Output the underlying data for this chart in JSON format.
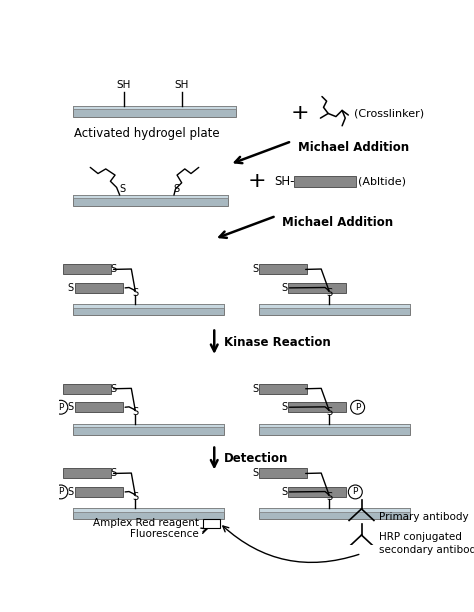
{
  "bg_color": "#ffffff",
  "plate_color": "#a8b8c0",
  "plate_top_color": "#c8d8e0",
  "plate_edge_color": "#777777",
  "peptide_color": "#888888",
  "peptide_edge_color": "#555555",
  "crosslinker_label": "(Crosslinker)",
  "abl_label": "(Abltide)",
  "primary_ab_label": "Primary antibody",
  "hrp_label": "HRP conjugated\nsecondary antibody",
  "amplex_label": "Amplex Red reagent",
  "fluor_label": "Fluorescence",
  "hydrogel_label": "Activated hydrogel plate",
  "step1_label": "Michael Addition",
  "step2_label": "Michael Addition",
  "step3_label": "Kinase Reaction",
  "step4_label": "Detection"
}
